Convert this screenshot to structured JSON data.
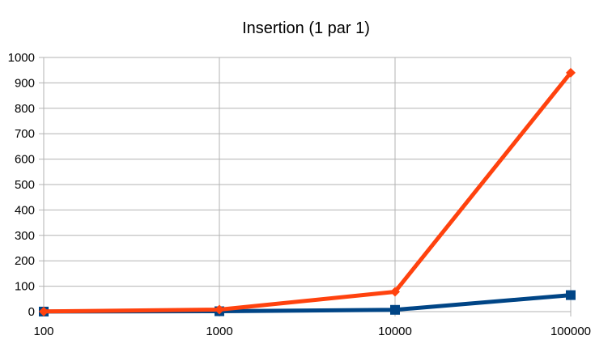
{
  "chart_data": {
    "type": "line",
    "title": "Insertion (1 par 1)",
    "xlabel": "",
    "ylabel": "",
    "categories": [
      "100",
      "1000",
      "10000",
      "100000"
    ],
    "ylim": [
      0,
      1000
    ],
    "y_ticks": [
      "0",
      "100",
      "200",
      "300",
      "400",
      "500",
      "600",
      "700",
      "800",
      "900",
      "1000"
    ],
    "grid": true,
    "legend": "none",
    "series": [
      {
        "color": "#004586",
        "marker": "square",
        "values": [
          0.2,
          1.5,
          7,
          65
        ]
      },
      {
        "color": "#ff420e",
        "marker": "diamond",
        "values": [
          0.5,
          8,
          78,
          940
        ]
      }
    ]
  }
}
